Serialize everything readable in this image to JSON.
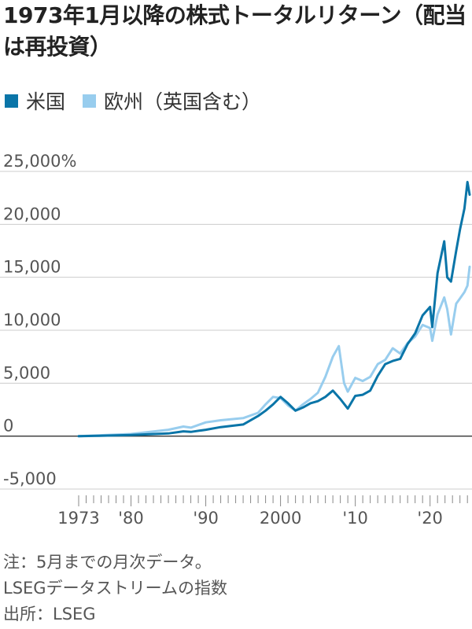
{
  "title": "1973年1月以降の株式トータルリターン（配当は再投資）",
  "legend": [
    {
      "label": "米国",
      "color": "#0a75a8"
    },
    {
      "label": "欧州（英国含む）",
      "color": "#98cdee"
    }
  ],
  "notes": {
    "note": "注：5月までの月次データ。",
    "index": "LSEGデータストリームの指数",
    "source": "出所：LSEG"
  },
  "chart_data": {
    "type": "line",
    "title": "1973年1月以降の株式トータルリターン（配当は再投資）",
    "xlabel": "",
    "ylabel": "",
    "xlim": [
      1973,
      2025.4
    ],
    "ylim": [
      -5000,
      25000
    ],
    "y_unit": "%",
    "grid": true,
    "legend_position": "top-left",
    "y_ticks": [
      {
        "value": 25000,
        "label": "25,000%"
      },
      {
        "value": 20000,
        "label": "20,000"
      },
      {
        "value": 15000,
        "label": "15,000"
      },
      {
        "value": 10000,
        "label": "10,000"
      },
      {
        "value": 5000,
        "label": "5,000"
      },
      {
        "value": 0,
        "label": "0"
      },
      {
        "value": -5000,
        "label": "-5,000"
      }
    ],
    "x_ticks": [
      {
        "value": 1973,
        "label": "1973"
      },
      {
        "value": 1980,
        "label": "'80"
      },
      {
        "value": 1990,
        "label": "'90"
      },
      {
        "value": 2000,
        "label": "2000"
      },
      {
        "value": 2010,
        "label": "'10"
      },
      {
        "value": 2020,
        "label": "'20"
      }
    ],
    "series": [
      {
        "name": "米国",
        "color": "#0a75a8",
        "x": [
          1973,
          1975,
          1980,
          1985,
          1987,
          1988,
          1990,
          1992,
          1995,
          1997,
          1998,
          1999,
          2000,
          2001,
          2002,
          2003,
          2004,
          2005,
          2006,
          2007,
          2008,
          2009,
          2010,
          2011,
          2012,
          2013,
          2014,
          2015,
          2016,
          2017,
          2018,
          2019,
          2020,
          2020.3,
          2021,
          2021.9,
          2022.3,
          2022.8,
          2023.5,
          2024,
          2024.6,
          2025,
          2025.3
        ],
        "values": [
          0,
          20,
          100,
          250,
          450,
          400,
          600,
          850,
          1100,
          1900,
          2400,
          3000,
          3700,
          3100,
          2400,
          2700,
          3100,
          3300,
          3700,
          4300,
          3500,
          2600,
          3800,
          3900,
          4300,
          5700,
          6800,
          7100,
          7300,
          8700,
          9700,
          11400,
          12200,
          10300,
          15400,
          18400,
          15000,
          14600,
          17500,
          19500,
          21500,
          24000,
          22800
        ]
      },
      {
        "name": "欧州（英国含む）",
        "color": "#98cdee",
        "x": [
          1973,
          1975,
          1980,
          1985,
          1987,
          1988,
          1990,
          1992,
          1995,
          1997,
          1998,
          1999,
          2000,
          2001,
          2002,
          2003,
          2004,
          2005,
          2006,
          2007,
          2007.8,
          2008.5,
          2009,
          2010,
          2011,
          2012,
          2013,
          2014,
          2015,
          2016,
          2017,
          2018,
          2019,
          2020,
          2020.3,
          2021,
          2021.9,
          2022.3,
          2022.8,
          2023.5,
          2024,
          2024.6,
          2025,
          2025.3
        ],
        "values": [
          0,
          50,
          200,
          600,
          900,
          800,
          1300,
          1500,
          1700,
          2200,
          3000,
          3700,
          3600,
          2900,
          2400,
          3000,
          3500,
          4100,
          5600,
          7500,
          8500,
          5000,
          4200,
          5500,
          5200,
          5600,
          6800,
          7200,
          8300,
          7800,
          8800,
          9400,
          10500,
          10200,
          9000,
          11500,
          13100,
          12000,
          9600,
          12500,
          13000,
          13600,
          14200,
          16000
        ]
      }
    ]
  }
}
